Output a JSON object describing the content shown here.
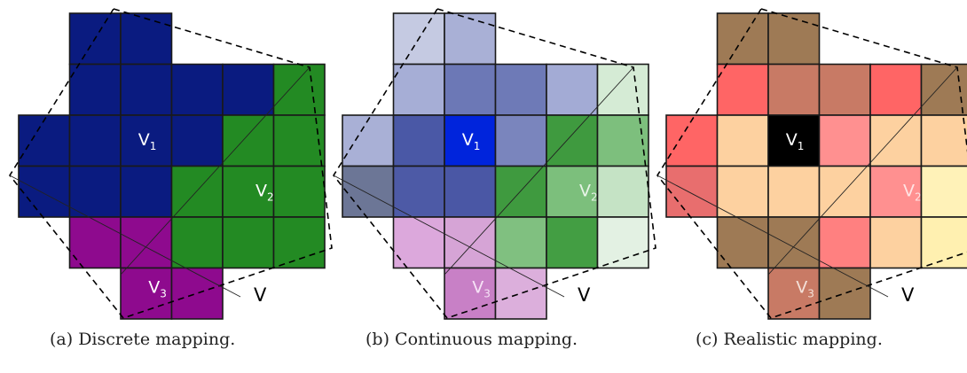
{
  "panels": [
    {
      "caption": "(a) Discrete mapping.",
      "cells": [
        [
          null,
          "#0a1b80",
          "#0a1b80",
          null,
          null,
          null
        ],
        [
          null,
          "#0a1b80",
          "#0a1b80",
          "#0a1b80",
          "#0a1b80",
          "#238a23"
        ],
        [
          "#0a1b80",
          "#0a1b80",
          "#0a1b80",
          "#0a1b80",
          "#238a23",
          "#238a23"
        ],
        [
          "#0a1b80",
          "#0a1b80",
          "#0a1b80",
          "#238a23",
          "#238a23",
          "#238a23"
        ],
        [
          null,
          "#8e0a8e",
          "#8e0a8e",
          "#238a23",
          "#238a23",
          "#238a23"
        ],
        [
          null,
          null,
          "#8e0a8e",
          "#8e0a8e",
          null,
          null
        ]
      ],
      "labels": [
        {
          "text": "V",
          "sub": "1",
          "color": "#ffffff",
          "cell": [
            2,
            2
          ]
        },
        {
          "text": "V",
          "sub": "2",
          "color": "#ffffff",
          "cell": [
            3,
            4.3
          ]
        },
        {
          "text": "V",
          "sub": "3",
          "color": "#ffffff",
          "cell": [
            4.9,
            2.2
          ]
        }
      ],
      "v_label": "V"
    },
    {
      "caption": "(b) Continuous mapping.",
      "cells": [
        [
          null,
          "#c5cae2",
          "#a9b0d6",
          null,
          null,
          null
        ],
        [
          null,
          "#a6aed6",
          "#6c78b6",
          "#6e7ab7",
          "#a3abd5",
          "#d5ebd5"
        ],
        [
          "#a9b0d6",
          "#4a58a6",
          "#0024dc",
          "#7a85bd",
          "#3f9a3f",
          "#7dbf7d"
        ],
        [
          "#6c7696",
          "#4d5aa6",
          "#4a57a5",
          "#3f9a3f",
          "#7cbf7c",
          "#c5e3c5"
        ],
        [
          null,
          "#dca8dc",
          "#d6a4d6",
          "#80c080",
          "#439e43",
          "#e3f1e3"
        ],
        [
          null,
          null,
          "#c880c6",
          "#dcafdc",
          null,
          null
        ]
      ],
      "labels": [
        {
          "text": "V",
          "sub": "1",
          "color": "#ffffff",
          "cell": [
            2,
            2
          ]
        },
        {
          "text": "V",
          "sub": "2",
          "color": "#e8f4e8",
          "cell": [
            3,
            4.3
          ]
        },
        {
          "text": "V",
          "sub": "3",
          "color": "#f6e3f6",
          "cell": [
            4.9,
            2.2
          ]
        }
      ],
      "v_label": "V"
    },
    {
      "caption": "(c) Realistic mapping.",
      "cells": [
        [
          null,
          "#9e7a55",
          "#9e7a55",
          null,
          null,
          null
        ],
        [
          null,
          "#ff6565",
          "#c87a65",
          "#c87a65",
          "#ff6565",
          "#9e7a55"
        ],
        [
          "#ff6565",
          "#fdd1a0",
          "#000000",
          "#ff9090",
          "#fdd1a0",
          "#fdd1a0"
        ],
        [
          "#e86e6e",
          "#fdd1a0",
          "#fdd1a0",
          "#fdd1a0",
          "#ff9090",
          "#fff2b8"
        ],
        [
          null,
          "#9e7a55",
          "#9e7a55",
          "#ff8080",
          "#fdd1a0",
          "#fff0b0"
        ],
        [
          null,
          null,
          "#c87a65",
          "#9e7a55",
          null,
          null
        ]
      ],
      "labels": [
        {
          "text": "V",
          "sub": "1",
          "color": "#ffffff",
          "cell": [
            2,
            2
          ]
        },
        {
          "text": "V",
          "sub": "2",
          "color": "#ffe4e4",
          "cell": [
            3,
            4.3
          ]
        },
        {
          "text": "V",
          "sub": "3",
          "color": "#f4e0d8",
          "cell": [
            4.9,
            2.2
          ]
        }
      ],
      "v_label": "V"
    }
  ]
}
